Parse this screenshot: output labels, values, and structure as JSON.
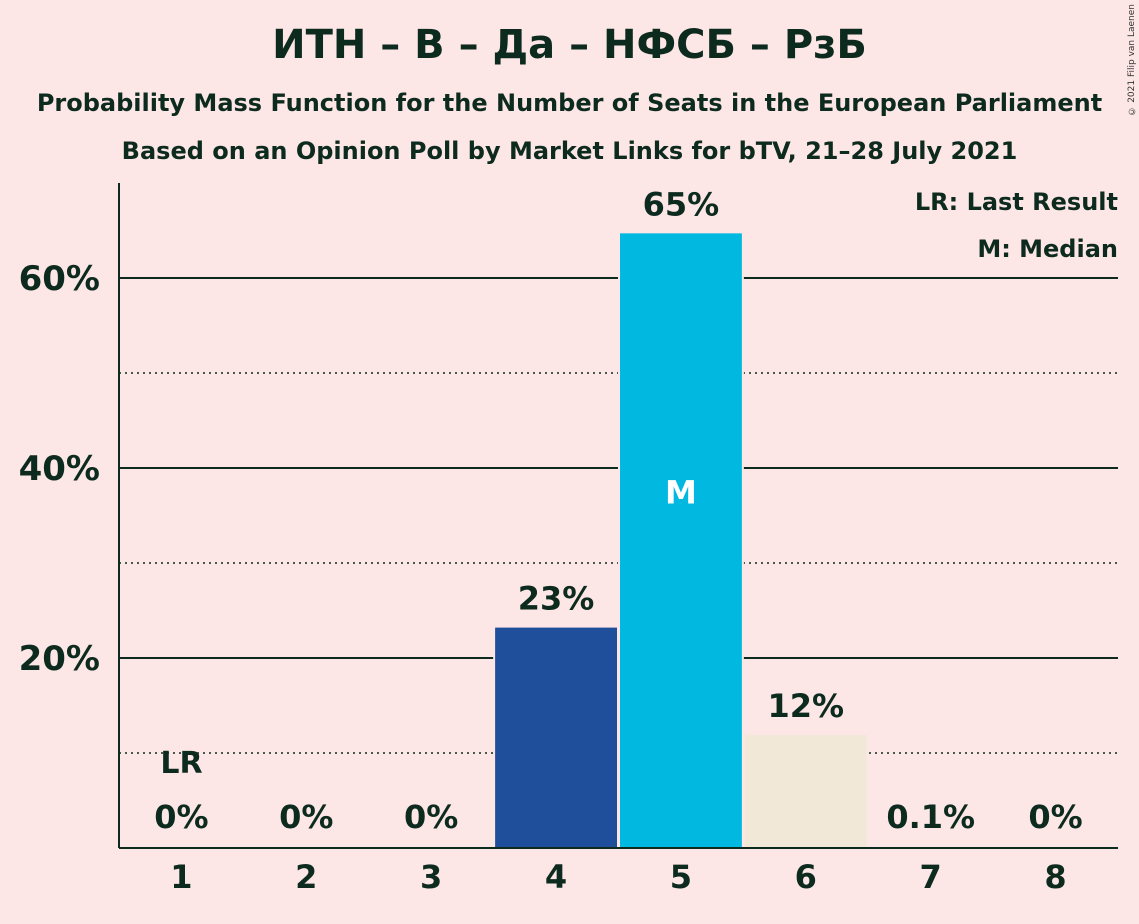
{
  "header": {
    "title": "ИТН – В – Да – НФСБ – РзБ",
    "subtitle": "Probability Mass Function for the Number of Seats in the European Parliament",
    "source": "Based on an Opinion Poll by Market Links for bTV, 21–28 July 2021",
    "copyright": "© 2021 Filip van Laenen"
  },
  "legend": {
    "last_result": "LR: Last Result",
    "median": "M: Median"
  },
  "chart_data": {
    "type": "bar",
    "title": "ИТН – В – Да – НФСБ – РзБ",
    "categories": [
      "1",
      "2",
      "3",
      "4",
      "5",
      "6",
      "7",
      "8"
    ],
    "values": [
      0,
      0,
      0,
      23.2,
      64.7,
      11.9,
      0.1,
      0
    ],
    "labels": [
      "0%",
      "0%",
      "0%",
      "23%",
      "65%",
      "12%",
      "0.1%",
      "0%"
    ],
    "colors": [
      "#1f4e9a",
      "#1f4e9a",
      "#1f4e9a",
      "#1f4e9a",
      "#00b8e0",
      "#f1e8d8",
      "#1f4e9a",
      "#1f4e9a"
    ],
    "ylim": [
      0,
      70
    ],
    "yticks_major": [
      20,
      40,
      60
    ],
    "ytick_labels": [
      "20%",
      "40%",
      "60%"
    ],
    "yticks_minor": [
      10,
      30,
      50
    ],
    "last_result_category": "1",
    "last_result_label": "LR",
    "median_category": "5",
    "median_label": "M",
    "legend_position": "top-right"
  }
}
